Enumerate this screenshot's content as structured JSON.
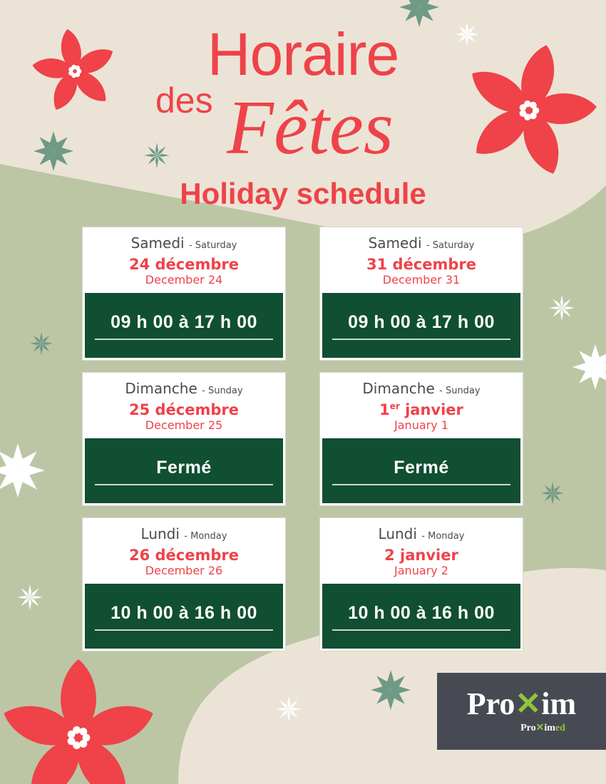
{
  "header": {
    "title_line1": "Horaire",
    "title_des": "des",
    "title_fetes": "Fêtes",
    "subtitle": "Holiday schedule"
  },
  "colors": {
    "accent_red": "#ef4249",
    "dark_green": "#114f32",
    "beige": "#ebe4d6",
    "sage": "#bcc6a5",
    "logo_bg": "#474a53",
    "logo_green": "#8dc63f"
  },
  "schedule": [
    {
      "day_fr": "Samedi",
      "day_en": "- Saturday",
      "date_fr": "24 décembre",
      "date_fr_sup": "",
      "date_en": "December 24",
      "hours": "09 h 00 à 17 h 00"
    },
    {
      "day_fr": "Samedi",
      "day_en": "- Saturday",
      "date_fr": "31 décembre",
      "date_fr_sup": "",
      "date_en": "December 31",
      "hours": "09 h 00 à 17 h 00"
    },
    {
      "day_fr": "Dimanche",
      "day_en": "- Sunday",
      "date_fr": "25 décembre",
      "date_fr_sup": "",
      "date_en": "December 25",
      "hours": "Fermé"
    },
    {
      "day_fr": "Dimanche",
      "day_en": "- Sunday",
      "date_fr": "1",
      "date_fr_sup": "er",
      "date_fr_rest": " janvier",
      "date_en": "January 1",
      "hours": "Fermé"
    },
    {
      "day_fr": "Lundi",
      "day_en": "- Monday",
      "date_fr": "26 décembre",
      "date_fr_sup": "",
      "date_en": "December 26",
      "hours": "10 h 00 à 16 h 00"
    },
    {
      "day_fr": "Lundi",
      "day_en": "- Monday",
      "date_fr": "2 janvier",
      "date_fr_sup": "",
      "date_en": "January 2",
      "hours": "10 h 00 à 16 h 00"
    }
  ],
  "logo": {
    "brand": "Proxim",
    "sub_brand": "Proximed"
  }
}
